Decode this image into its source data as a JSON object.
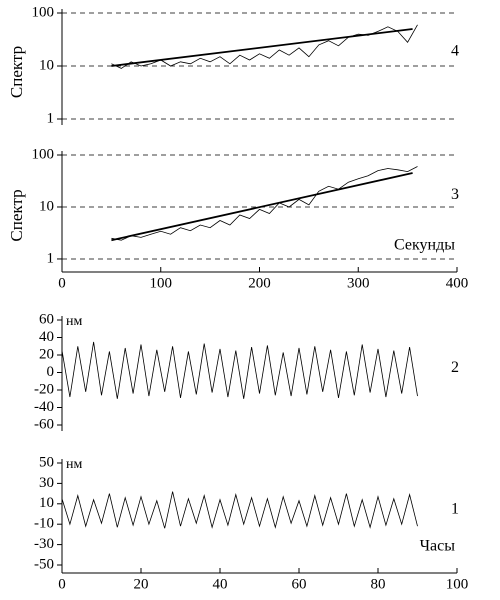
{
  "chart_data": [
    {
      "type": "line",
      "y_label": "Спектр",
      "annotation": "4",
      "log_y": true,
      "grid": true,
      "xlim": [
        0,
        400
      ],
      "ylim": [
        1,
        100
      ],
      "yticks": [
        1,
        10,
        100
      ],
      "series": [
        {
          "color": "#000000",
          "x": [
            50,
            60,
            70,
            80,
            90,
            100,
            110,
            120,
            130,
            140,
            150,
            160,
            170,
            180,
            190,
            200,
            210,
            220,
            230,
            240,
            250,
            260,
            270,
            280,
            290,
            300,
            310,
            320,
            330,
            340,
            350,
            360
          ],
          "values": [
            11,
            9,
            12,
            10,
            11,
            13,
            10,
            12,
            11,
            14,
            12,
            15,
            11,
            16,
            13,
            17,
            14,
            20,
            16,
            22,
            15,
            25,
            30,
            24,
            35,
            40,
            38,
            45,
            55,
            45,
            28,
            60
          ]
        },
        {
          "color": "#000000",
          "x": [
            50,
            355
          ],
          "values": [
            10,
            50
          ]
        }
      ]
    },
    {
      "type": "line",
      "y_label": "Спектр",
      "annotation": "3",
      "x_label": "Секунды",
      "log_y": true,
      "grid": true,
      "xlim": [
        0,
        400
      ],
      "xticks": [
        0,
        100,
        200,
        300,
        400
      ],
      "ylim": [
        0.8,
        100
      ],
      "yticks": [
        1,
        10,
        100
      ],
      "series": [
        {
          "color": "#000000",
          "x": [
            50,
            60,
            70,
            80,
            90,
            100,
            110,
            120,
            130,
            140,
            150,
            160,
            170,
            180,
            190,
            200,
            210,
            220,
            230,
            240,
            250,
            260,
            270,
            280,
            290,
            300,
            310,
            320,
            330,
            340,
            350,
            360
          ],
          "values": [
            2.5,
            2.3,
            2.8,
            2.6,
            3,
            3.4,
            3,
            4,
            3.5,
            4.5,
            4,
            5.5,
            4.5,
            7,
            6,
            9,
            7.5,
            12,
            10,
            14,
            11,
            20,
            25,
            22,
            30,
            35,
            40,
            50,
            55,
            52,
            48,
            60
          ]
        },
        {
          "color": "#000000",
          "x": [
            50,
            355
          ],
          "values": [
            2.3,
            45
          ]
        }
      ]
    },
    {
      "type": "line",
      "unit_label": "нм",
      "annotation": "2",
      "grid": false,
      "xlim": [
        0,
        100
      ],
      "ylim": [
        -60,
        60
      ],
      "yticks": [
        -60,
        -40,
        -20,
        0,
        20,
        40,
        60
      ],
      "series": [
        {
          "color": "#000000",
          "x": [
            0,
            2,
            4,
            6,
            8,
            10,
            12,
            14,
            16,
            18,
            20,
            22,
            24,
            26,
            28,
            30,
            32,
            34,
            36,
            38,
            40,
            42,
            44,
            46,
            48,
            50,
            52,
            54,
            56,
            58,
            60,
            62,
            64,
            66,
            68,
            70,
            72,
            74,
            76,
            78,
            80,
            82,
            84,
            86,
            88,
            90
          ],
          "values": [
            25,
            -28,
            30,
            -22,
            35,
            -26,
            24,
            -30,
            28,
            -24,
            32,
            -27,
            26,
            -22,
            30,
            -29,
            24,
            -25,
            33,
            -23,
            27,
            -28,
            25,
            -30,
            29,
            -24,
            31,
            -26,
            23,
            -27,
            28,
            -25,
            30,
            -22,
            26,
            -29,
            24,
            -26,
            32,
            -23,
            27,
            -28,
            25,
            -24,
            29,
            -27
          ]
        }
      ]
    },
    {
      "type": "line",
      "unit_label": "нм",
      "annotation": "1",
      "x_label": "Часы",
      "grid": false,
      "xlim": [
        0,
        100
      ],
      "xticks": [
        0,
        20,
        40,
        60,
        80,
        100
      ],
      "ylim": [
        -50,
        50
      ],
      "yticks": [
        -50,
        -30,
        -10,
        10,
        30,
        50
      ],
      "series": [
        {
          "color": "#000000",
          "x": [
            0,
            2,
            4,
            6,
            8,
            10,
            12,
            14,
            16,
            18,
            20,
            22,
            24,
            26,
            28,
            30,
            32,
            34,
            36,
            38,
            40,
            42,
            44,
            46,
            48,
            50,
            52,
            54,
            56,
            58,
            60,
            62,
            64,
            66,
            68,
            70,
            72,
            74,
            76,
            78,
            80,
            82,
            84,
            86,
            88,
            90
          ],
          "values": [
            15,
            -10,
            18,
            -12,
            14,
            -9,
            20,
            -13,
            16,
            -11,
            17,
            -10,
            13,
            -14,
            22,
            -12,
            15,
            -9,
            18,
            -13,
            14,
            -11,
            19,
            -10,
            16,
            -12,
            15,
            -13,
            17,
            -9,
            13,
            -12,
            18,
            -11,
            16,
            -10,
            20,
            -12,
            14,
            -13,
            17,
            -11,
            15,
            -10,
            19,
            -12
          ]
        }
      ]
    }
  ]
}
